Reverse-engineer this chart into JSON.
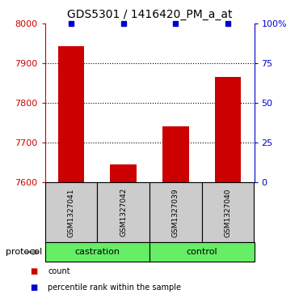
{
  "title": "GDS5301 / 1416420_PM_a_at",
  "samples": [
    "GSM1327041",
    "GSM1327042",
    "GSM1327039",
    "GSM1327040"
  ],
  "bar_values": [
    7943,
    7645,
    7740,
    7865
  ],
  "percentile_values": [
    100,
    100,
    100,
    100
  ],
  "ylim_left": [
    7600,
    8000
  ],
  "ylim_right": [
    0,
    100
  ],
  "yticks_left": [
    7600,
    7700,
    7800,
    7900,
    8000
  ],
  "yticks_right": [
    0,
    25,
    50,
    75,
    100
  ],
  "bar_color": "#cc0000",
  "percentile_color": "#0000cc",
  "bar_bottom": 7600,
  "groups": [
    {
      "label": "castration",
      "samples": [
        0,
        1
      ],
      "color": "#66ee66"
    },
    {
      "label": "control",
      "samples": [
        2,
        3
      ],
      "color": "#66ee66"
    }
  ],
  "protocol_label": "protocol",
  "gray_box_color": "#cccccc",
  "title_fontsize": 10,
  "tick_fontsize": 8,
  "label_fontsize": 8
}
